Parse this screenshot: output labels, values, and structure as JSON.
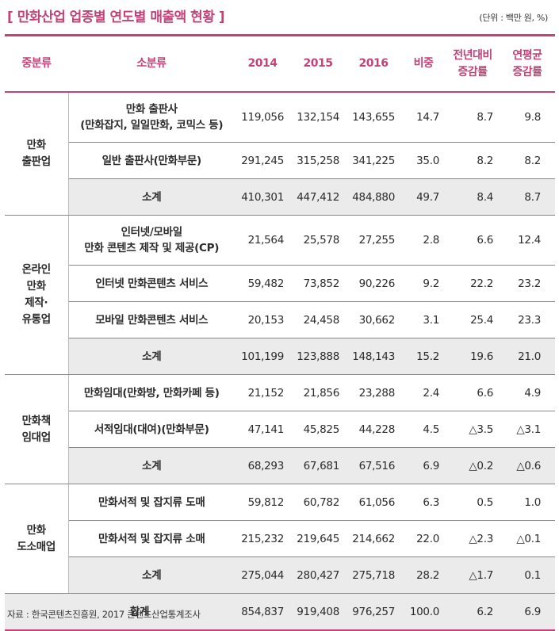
{
  "title": "[ 만화산업 업종별 연도별 매출액 현황 ]",
  "unit": "(단위 : 백만 원, %)",
  "source": "자료 : 한국콘텐츠진흥원, 2017 콘텐츠산업통계조사",
  "headers": {
    "category": "중분류",
    "subcategory": "소분류",
    "y2014": "2014",
    "y2015": "2015",
    "y2016": "2016",
    "share": "비중",
    "yoy": "전년대비\n증감률",
    "cagr": "연평균\n증감률"
  },
  "groups": [
    {
      "category": "만화\n출판업",
      "rows": [
        {
          "sub": "만화 출판사\n(만화잡지, 일일만화, 코믹스 등)",
          "v2014": "119,056",
          "v2015": "132,154",
          "v2016": "143,655",
          "share": "14.7",
          "yoy": "8.7",
          "cagr": "9.8"
        },
        {
          "sub": "일반 출판사(만화부문)",
          "v2014": "291,245",
          "v2015": "315,258",
          "v2016": "341,225",
          "share": "35.0",
          "yoy": "8.2",
          "cagr": "8.2"
        },
        {
          "sub": "소계",
          "v2014": "410,301",
          "v2015": "447,412",
          "v2016": "484,880",
          "share": "49.7",
          "yoy": "8.4",
          "cagr": "8.7"
        }
      ]
    },
    {
      "category": "온라인\n만화\n제작·\n유통업",
      "rows": [
        {
          "sub": "인터넷/모바일\n만화 콘텐츠 제작 및 제공(CP)",
          "v2014": "21,564",
          "v2015": "25,578",
          "v2016": "27,255",
          "share": "2.8",
          "yoy": "6.6",
          "cagr": "12.4"
        },
        {
          "sub": "인터넷 만화콘텐츠 서비스",
          "v2014": "59,482",
          "v2015": "73,852",
          "v2016": "90,226",
          "share": "9.2",
          "yoy": "22.2",
          "cagr": "23.2"
        },
        {
          "sub": "모바일 만화콘텐츠 서비스",
          "v2014": "20,153",
          "v2015": "24,458",
          "v2016": "30,662",
          "share": "3.1",
          "yoy": "25.4",
          "cagr": "23.3"
        },
        {
          "sub": "소계",
          "v2014": "101,199",
          "v2015": "123,888",
          "v2016": "148,143",
          "share": "15.2",
          "yoy": "19.6",
          "cagr": "21.0"
        }
      ]
    },
    {
      "category": "만화책\n임대업",
      "rows": [
        {
          "sub": "만화임대(만화방, 만화카페 등)",
          "v2014": "21,152",
          "v2015": "21,856",
          "v2016": "23,288",
          "share": "2.4",
          "yoy": "6.6",
          "cagr": "4.9"
        },
        {
          "sub": "서적임대(대여)(만화부문)",
          "v2014": "47,141",
          "v2015": "45,825",
          "v2016": "44,228",
          "share": "4.5",
          "yoy": "△3.5",
          "cagr": "△3.1"
        },
        {
          "sub": "소계",
          "v2014": "68,293",
          "v2015": "67,681",
          "v2016": "67,516",
          "share": "6.9",
          "yoy": "△0.2",
          "cagr": "△0.6"
        }
      ]
    },
    {
      "category": "만화\n도소매업",
      "rows": [
        {
          "sub": "만화서적 및 잡지류 도매",
          "v2014": "59,812",
          "v2015": "60,782",
          "v2016": "61,056",
          "share": "6.3",
          "yoy": "0.5",
          "cagr": "1.0"
        },
        {
          "sub": "만화서적 및 잡지류 소매",
          "v2014": "215,232",
          "v2015": "219,645",
          "v2016": "214,662",
          "share": "22.0",
          "yoy": "△2.3",
          "cagr": "△0.1"
        },
        {
          "sub": "소계",
          "v2014": "275,044",
          "v2015": "280,427",
          "v2016": "275,718",
          "share": "28.2",
          "yoy": "△1.7",
          "cagr": "0.1"
        }
      ]
    }
  ],
  "total": {
    "sub": "합계",
    "v2014": "854,837",
    "v2015": "919,408",
    "v2016": "976,257",
    "share": "100.0",
    "yoy": "6.2",
    "cagr": "6.9"
  }
}
